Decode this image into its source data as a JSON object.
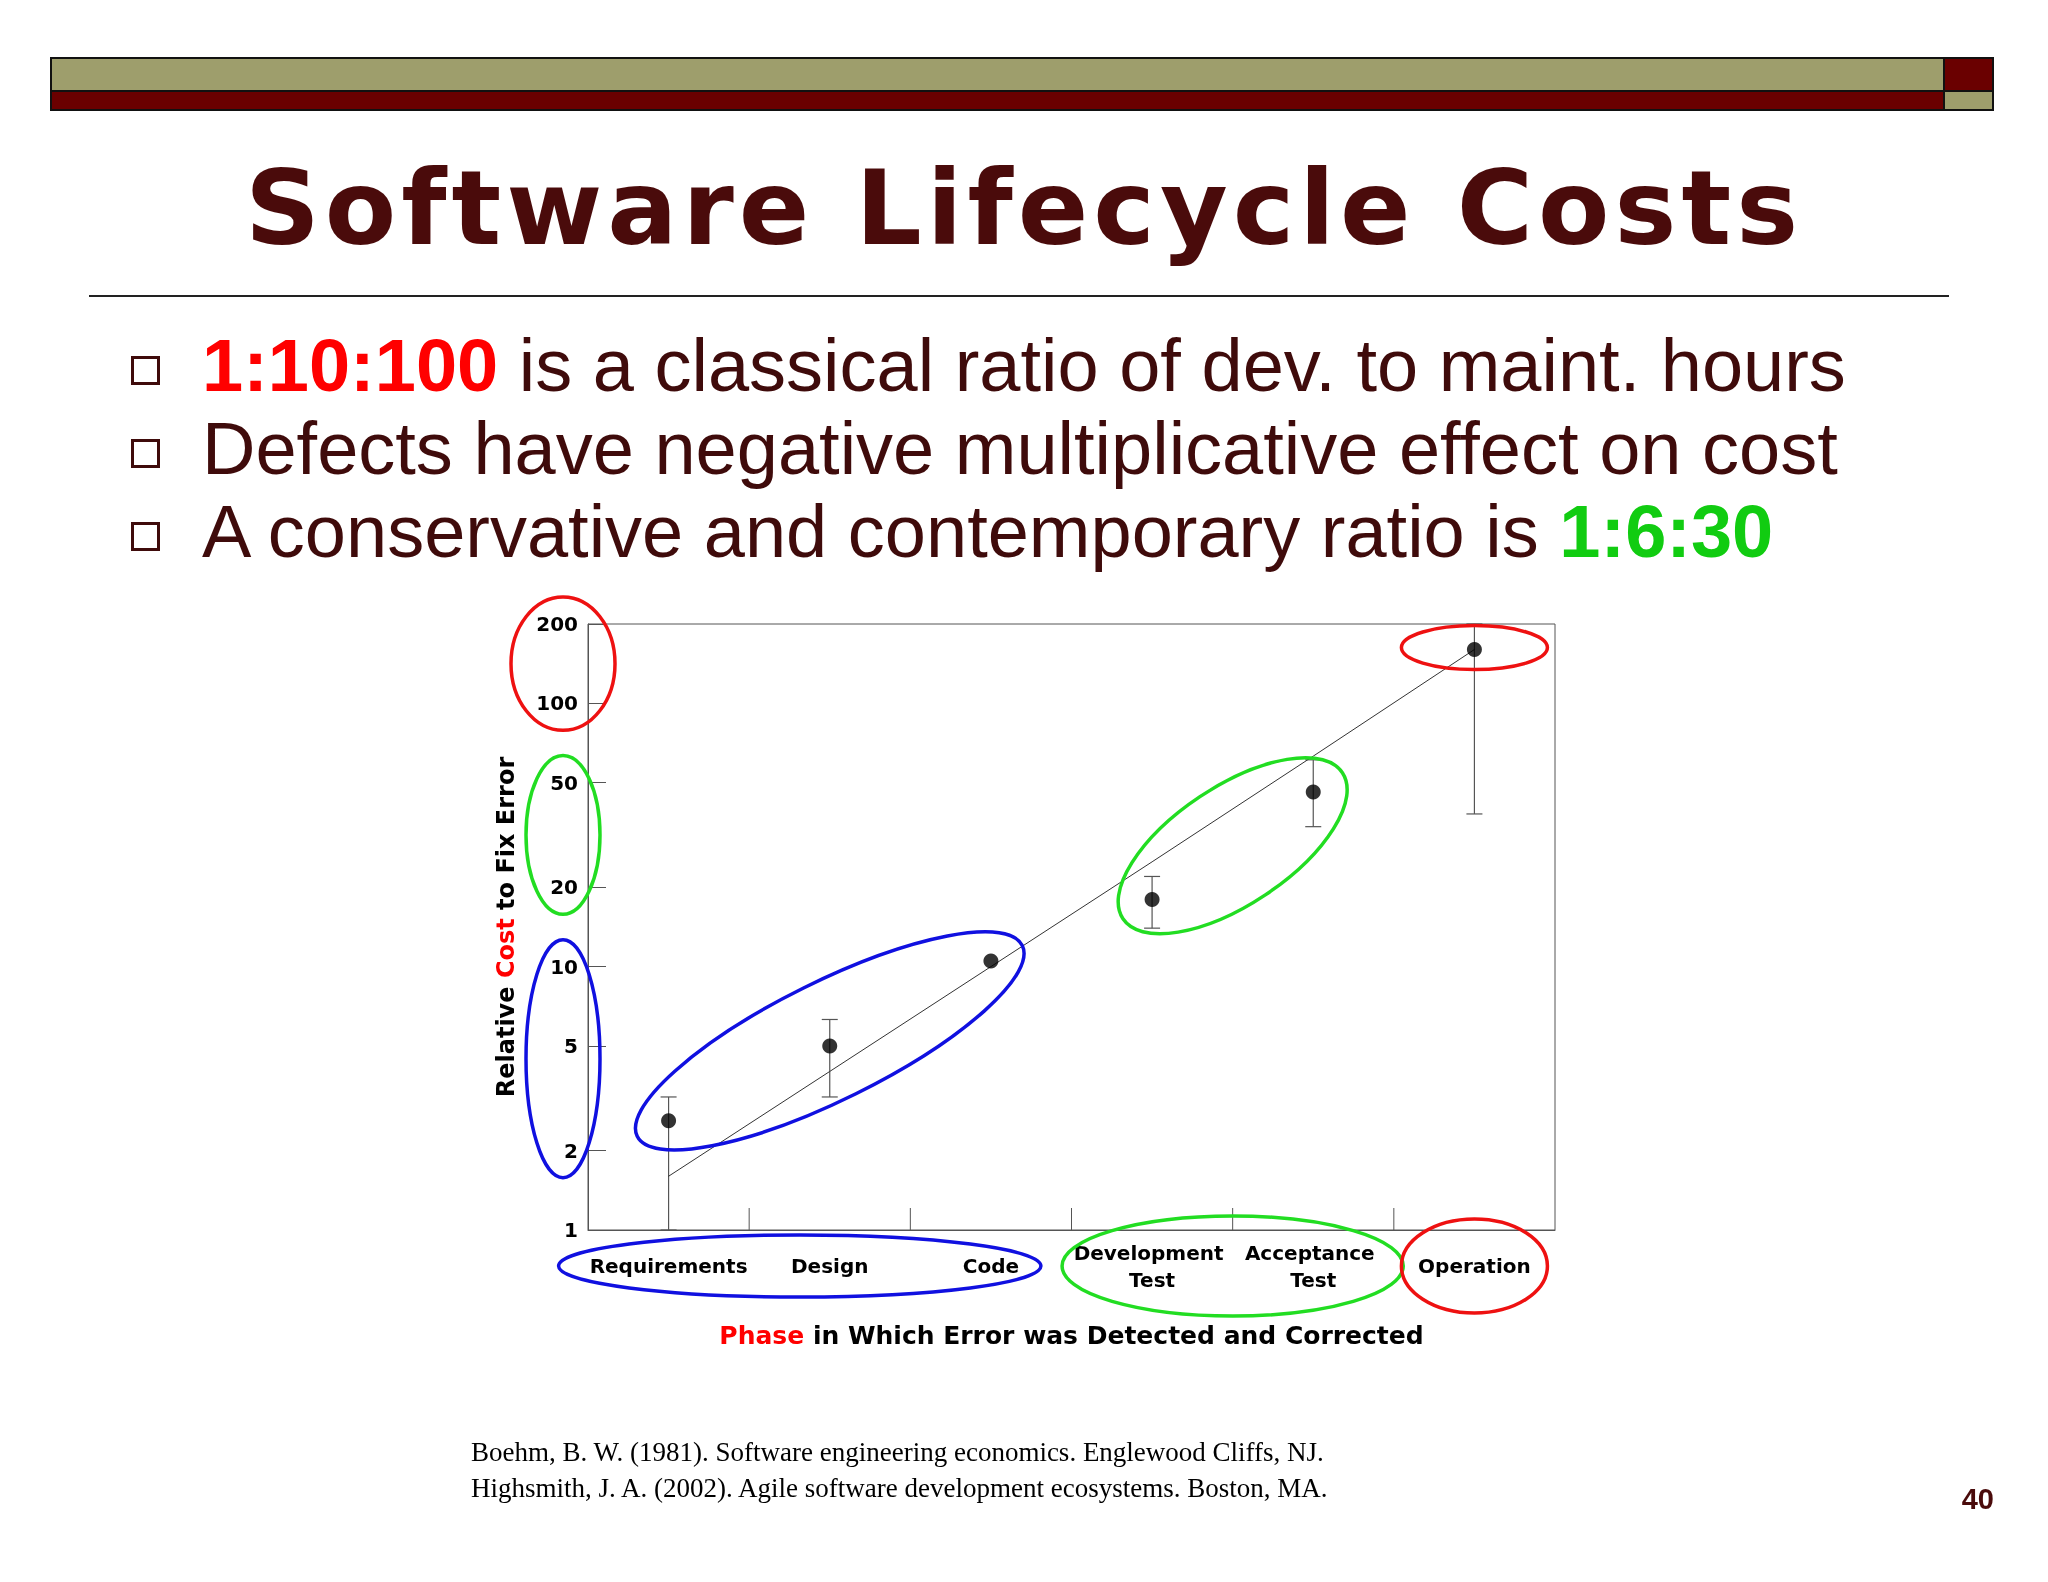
{
  "chart_data": {
    "type": "scatter",
    "title": "Software Lifecycle Costs",
    "subtitle": "1:10:100 is a classical ratio of dev. to maint. hours\nDefects have negative multiplicative effect on cost\nA conservative and contemporary ratio is 1:6:30",
    "xlabel": "Phase in Which Error was Detected and Corrected",
    "ylabel": "Relative Cost to Fix Error",
    "annotations": [
      "Boehm, B. W. (1981). Software engineering economics. Englewood Cliffs, NJ.",
      "Highsmith, J. A. (2002). Agile software development ecosystems. Boston, MA.",
      "40"
    ],
    "categories": [
      "Requirements",
      "Design",
      "Code",
      "Development Test",
      "Acceptance Test",
      "Operation"
    ],
    "series": [
      {
        "color": "#000000",
        "marker": "circle",
        "values": [
          2.6,
          5,
          10.5,
          18,
          46,
          160
        ],
        "errors": [
          [
            1,
            3.2
          ],
          [
            3.2,
            6.3
          ],
          null,
          [
            14,
            22
          ],
          [
            34,
            61
          ],
          [
            38,
            200
          ]
        ]
      },
      {
        "type": "line",
        "color": "#333333",
        "marker": "none",
        "values": [
          1.6,
          4,
          10,
          25,
          63,
          160
        ]
      }
    ],
    "ylim": [
      1,
      200
    ],
    "yticks": [
      1,
      2,
      5,
      10,
      20,
      50,
      100,
      200
    ],
    "log": "y"
  }
}
